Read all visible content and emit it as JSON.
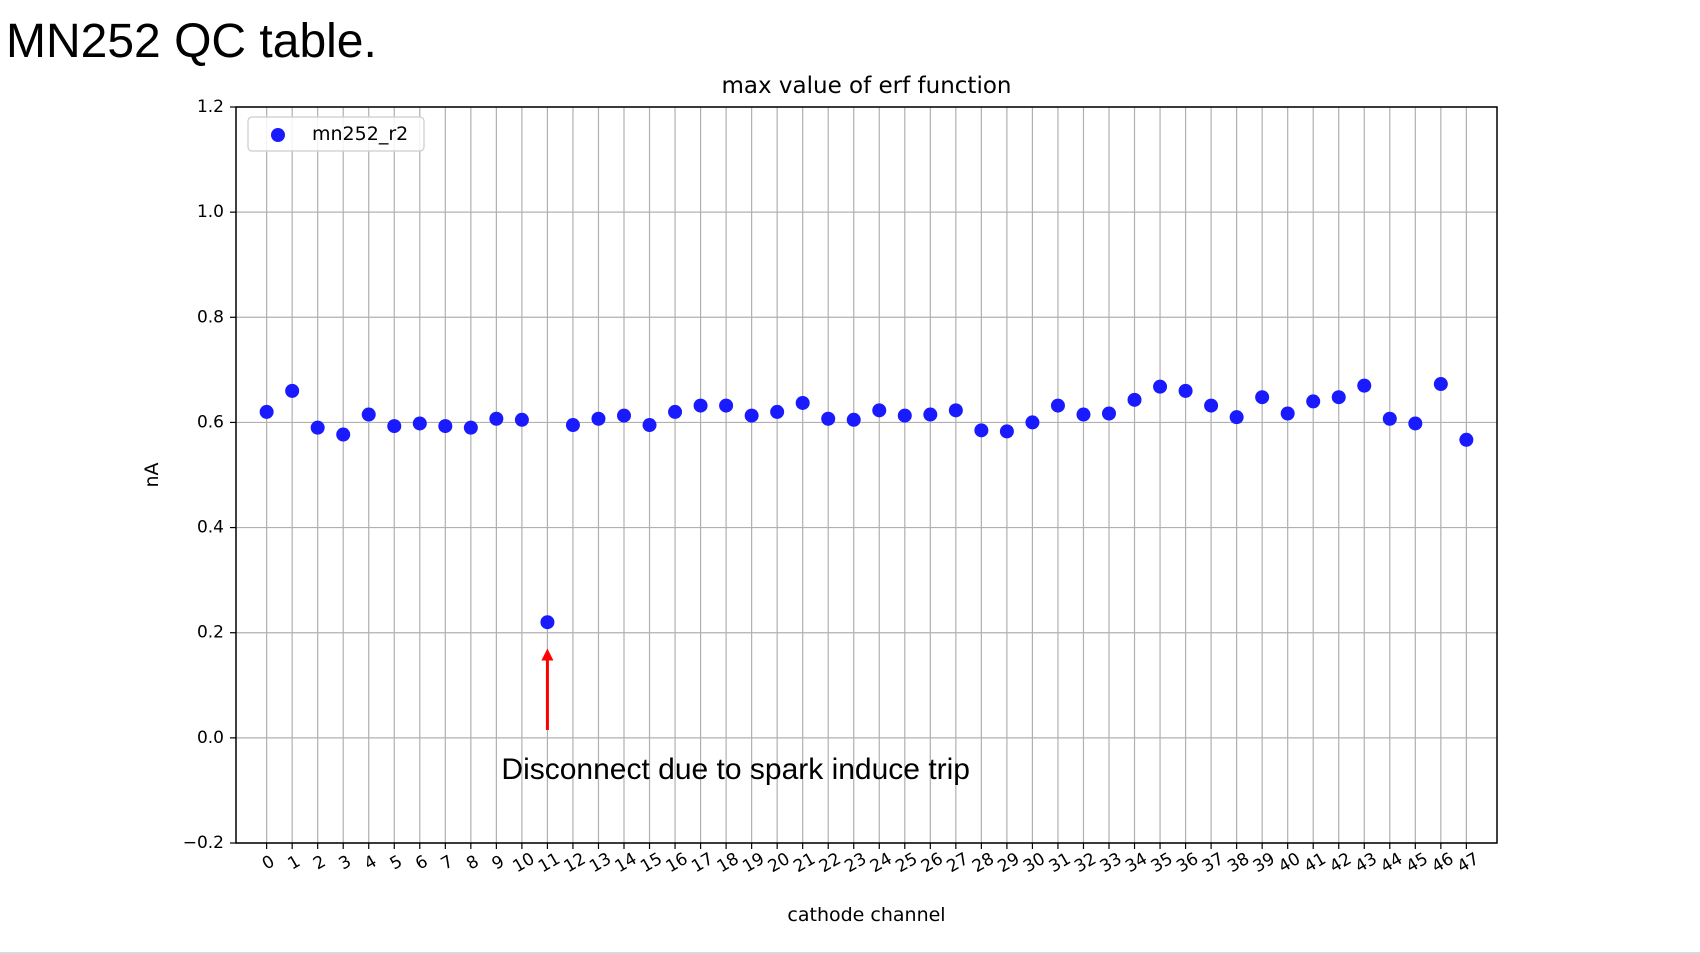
{
  "slide": {
    "title": "MN252 QC table."
  },
  "chart_data": {
    "type": "scatter",
    "title": "max value of erf function",
    "xlabel": "cathode channel",
    "ylabel": "nA",
    "xlim": [
      -1.2,
      48.2
    ],
    "ylim": [
      -0.2,
      1.2
    ],
    "grid": true,
    "legend_position": "top-left",
    "x_ticks": [
      0,
      1,
      2,
      3,
      4,
      5,
      6,
      7,
      8,
      9,
      10,
      11,
      12,
      13,
      14,
      15,
      16,
      17,
      18,
      19,
      20,
      21,
      22,
      23,
      24,
      25,
      26,
      27,
      28,
      29,
      30,
      31,
      32,
      33,
      34,
      35,
      36,
      37,
      38,
      39,
      40,
      41,
      42,
      43,
      44,
      45,
      46,
      47
    ],
    "y_ticks": [
      -0.2,
      0.0,
      0.2,
      0.4,
      0.6,
      0.8,
      1.0,
      1.2
    ],
    "y_tick_labels": [
      "−0.2",
      "0.0",
      "0.2",
      "0.4",
      "0.6",
      "0.8",
      "1.0",
      "1.2"
    ],
    "series": [
      {
        "name": "mn252_r2",
        "color": "#1a1aff",
        "x": [
          0,
          1,
          2,
          3,
          4,
          5,
          6,
          7,
          8,
          9,
          10,
          11,
          12,
          13,
          14,
          15,
          16,
          17,
          18,
          19,
          20,
          21,
          22,
          23,
          24,
          25,
          26,
          27,
          28,
          29,
          30,
          31,
          32,
          33,
          34,
          35,
          36,
          37,
          38,
          39,
          40,
          41,
          42,
          43,
          44,
          45,
          46,
          47
        ],
        "y": [
          0.62,
          0.66,
          0.59,
          0.577,
          0.615,
          0.593,
          0.598,
          0.593,
          0.59,
          0.607,
          0.605,
          0.22,
          0.595,
          0.607,
          0.613,
          0.595,
          0.62,
          0.632,
          0.632,
          0.613,
          0.62,
          0.637,
          0.607,
          0.605,
          0.623,
          0.613,
          0.615,
          0.623,
          0.585,
          0.583,
          0.6,
          0.632,
          0.615,
          0.617,
          0.643,
          0.668,
          0.66,
          0.632,
          0.61,
          0.648,
          0.617,
          0.64,
          0.648,
          0.67,
          0.607,
          0.598,
          0.673,
          0.567
        ]
      }
    ],
    "annotation": {
      "text": "Disconnect due to spark induce trip",
      "arrow_color": "#ff0000",
      "arrow_x": 11,
      "arrow_tip_y": 0.17,
      "arrow_tail_y": 0.015
    }
  }
}
